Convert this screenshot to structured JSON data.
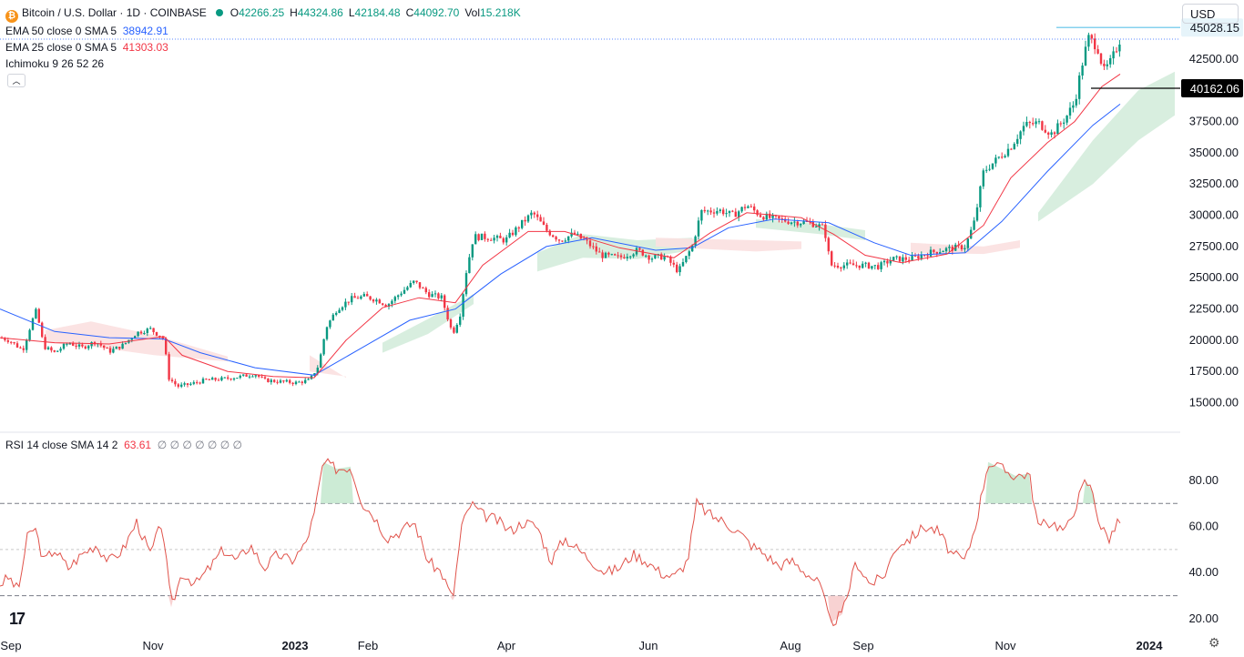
{
  "header": {
    "symbol": "Bitcoin / U.S. Dollar · 1D · COINBASE",
    "ohlc": [
      {
        "k": "O",
        "v": "42266.25"
      },
      {
        "k": "H",
        "v": "44324.86"
      },
      {
        "k": "L",
        "v": "42184.48"
      },
      {
        "k": "C",
        "v": "44092.70"
      },
      {
        "k": "Vol",
        "v": "15.218K"
      }
    ],
    "ema50_label": "EMA 50 close 0 SMA 5",
    "ema50_value": "38942.91",
    "ema25_label": "EMA 25 close 0 SMA 5",
    "ema25_value": "41303.03",
    "ichimoku_label": "Ichimoku 9 26 52 26",
    "currency": "USD"
  },
  "rsi_header": {
    "label": "RSI 14 close SMA 14 2",
    "value": "63.61",
    "extras": "∅ ∅ ∅ ∅ ∅ ∅ ∅"
  },
  "colors": {
    "up": "#089981",
    "down": "#f23645",
    "ema50": "#2962ff",
    "ema25": "#f23645",
    "rsi": "#e0524a",
    "cloud_bull": "#d4ecdc",
    "cloud_bear": "#fbe0e0",
    "high_line": "#5ec3e8",
    "low_line": "#000000"
  },
  "chart_data": [
    {
      "type": "candlestick",
      "title": "Bitcoin / U.S. Dollar · 1D · COINBASE",
      "x_ticks": [
        "Sep",
        "Nov",
        "2023",
        "Feb",
        "Apr",
        "Jun",
        "Aug",
        "Sep",
        "Nov",
        "2024"
      ],
      "y_ticks": [
        15000,
        17500,
        20000,
        22500,
        25000,
        27500,
        30000,
        32500,
        35000,
        37500,
        42500
      ],
      "ylim": [
        13000,
        46500
      ],
      "price_labels": [
        {
          "value": 45028.15,
          "text": "45028.15",
          "kind": "high"
        },
        {
          "value": 40162.06,
          "text": "40162.06",
          "kind": "low"
        }
      ],
      "path": [
        [
          0,
          20200
        ],
        [
          10,
          20000
        ],
        [
          25,
          19200
        ],
        [
          35,
          21500
        ],
        [
          40,
          22400
        ],
        [
          48,
          19500
        ],
        [
          60,
          19000
        ],
        [
          75,
          19800
        ],
        [
          90,
          19400
        ],
        [
          105,
          19900
        ],
        [
          120,
          19100
        ],
        [
          135,
          19600
        ],
        [
          150,
          20600
        ],
        [
          165,
          20900
        ],
        [
          180,
          20100
        ],
        [
          185,
          17000
        ],
        [
          195,
          16300
        ],
        [
          210,
          16500
        ],
        [
          225,
          16800
        ],
        [
          245,
          16900
        ],
        [
          265,
          17100
        ],
        [
          280,
          17300
        ],
        [
          290,
          16800
        ],
        [
          305,
          16700
        ],
        [
          325,
          16600
        ],
        [
          340,
          16800
        ],
        [
          350,
          18000
        ],
        [
          358,
          21000
        ],
        [
          370,
          22500
        ],
        [
          385,
          23300
        ],
        [
          400,
          23500
        ],
        [
          415,
          23200
        ],
        [
          425,
          22800
        ],
        [
          440,
          23800
        ],
        [
          455,
          24700
        ],
        [
          470,
          23700
        ],
        [
          485,
          23400
        ],
        [
          497,
          20500
        ],
        [
          505,
          22000
        ],
        [
          512,
          25500
        ],
        [
          520,
          28300
        ],
        [
          540,
          28200
        ],
        [
          555,
          28000
        ],
        [
          575,
          29500
        ],
        [
          585,
          30200
        ],
        [
          600,
          28800
        ],
        [
          615,
          28000
        ],
        [
          630,
          28500
        ],
        [
          645,
          27800
        ],
        [
          660,
          26800
        ],
        [
          680,
          26600
        ],
        [
          700,
          27200
        ],
        [
          715,
          26600
        ],
        [
          730,
          26700
        ],
        [
          745,
          25500
        ],
        [
          760,
          27500
        ],
        [
          770,
          30300
        ],
        [
          790,
          30400
        ],
        [
          805,
          30000
        ],
        [
          820,
          30800
        ],
        [
          835,
          30000
        ],
        [
          850,
          29700
        ],
        [
          870,
          29500
        ],
        [
          890,
          29400
        ],
        [
          905,
          29000
        ],
        [
          912,
          26000
        ],
        [
          925,
          26000
        ],
        [
          945,
          26000
        ],
        [
          965,
          25900
        ],
        [
          980,
          26500
        ],
        [
          1000,
          26500
        ],
        [
          1020,
          27000
        ],
        [
          1040,
          27300
        ],
        [
          1060,
          27500
        ],
        [
          1070,
          29500
        ],
        [
          1080,
          33500
        ],
        [
          1095,
          34500
        ],
        [
          1110,
          35500
        ],
        [
          1125,
          37200
        ],
        [
          1140,
          37400
        ],
        [
          1155,
          36500
        ],
        [
          1170,
          37800
        ],
        [
          1180,
          39000
        ],
        [
          1188,
          42000
        ],
        [
          1195,
          44200
        ],
        [
          1205,
          43500
        ],
        [
          1212,
          41500
        ],
        [
          1220,
          42300
        ],
        [
          1230,
          44100
        ]
      ],
      "ema25_path": [
        [
          0,
          20200
        ],
        [
          60,
          19800
        ],
        [
          120,
          19700
        ],
        [
          180,
          20300
        ],
        [
          200,
          18800
        ],
        [
          250,
          17500
        ],
        [
          300,
          17100
        ],
        [
          345,
          17000
        ],
        [
          380,
          20000
        ],
        [
          420,
          22600
        ],
        [
          460,
          23400
        ],
        [
          500,
          23000
        ],
        [
          530,
          26000
        ],
        [
          580,
          28700
        ],
        [
          620,
          28700
        ],
        [
          680,
          27400
        ],
        [
          740,
          26600
        ],
        [
          780,
          28600
        ],
        [
          820,
          30200
        ],
        [
          880,
          29800
        ],
        [
          915,
          28500
        ],
        [
          950,
          26800
        ],
        [
          990,
          26200
        ],
        [
          1040,
          26900
        ],
        [
          1080,
          29200
        ],
        [
          1110,
          33000
        ],
        [
          1150,
          35800
        ],
        [
          1180,
          37500
        ],
        [
          1210,
          40300
        ],
        [
          1230,
          41300
        ]
      ],
      "ema50_path": [
        [
          0,
          22500
        ],
        [
          60,
          20700
        ],
        [
          120,
          20200
        ],
        [
          180,
          20100
        ],
        [
          220,
          19000
        ],
        [
          280,
          17800
        ],
        [
          345,
          17200
        ],
        [
          400,
          19500
        ],
        [
          450,
          21600
        ],
        [
          500,
          22500
        ],
        [
          550,
          25300
        ],
        [
          600,
          27500
        ],
        [
          650,
          28200
        ],
        [
          720,
          27200
        ],
        [
          760,
          27400
        ],
        [
          800,
          29000
        ],
        [
          850,
          29700
        ],
        [
          910,
          29400
        ],
        [
          960,
          27800
        ],
        [
          1000,
          26800
        ],
        [
          1060,
          27000
        ],
        [
          1100,
          29500
        ],
        [
          1150,
          33500
        ],
        [
          1200,
          37200
        ],
        [
          1230,
          38900
        ]
      ],
      "cloud": [
        {
          "color": "bear",
          "pts": [
            [
              50,
              20800
            ],
            [
              100,
              21500
            ],
            [
              170,
              20400
            ],
            [
              250,
              18700
            ],
            [
              250,
              18300
            ],
            [
              170,
              18800
            ],
            [
              100,
              19500
            ],
            [
              50,
              19800
            ]
          ]
        },
        {
          "color": "bear",
          "pts": [
            [
              340,
              18800
            ],
            [
              380,
              17000
            ],
            [
              380,
              17100
            ],
            [
              340,
              17500
            ]
          ]
        },
        {
          "color": "bull",
          "pts": [
            [
              420,
              19800
            ],
            [
              470,
              21700
            ],
            [
              520,
              23700
            ],
            [
              520,
              22900
            ],
            [
              470,
              20500
            ],
            [
              420,
              19000
            ]
          ]
        },
        {
          "color": "bull",
          "pts": [
            [
              590,
              27000
            ],
            [
              640,
              28500
            ],
            [
              700,
              28000
            ],
            [
              760,
              28200
            ],
            [
              760,
              27200
            ],
            [
              700,
              26500
            ],
            [
              640,
              26600
            ],
            [
              590,
              25500
            ]
          ]
        },
        {
          "color": "bear",
          "pts": [
            [
              720,
              28200
            ],
            [
              830,
              28000
            ],
            [
              880,
              27900
            ],
            [
              880,
              27300
            ],
            [
              830,
              27100
            ],
            [
              720,
              27500
            ]
          ]
        },
        {
          "color": "bull",
          "pts": [
            [
              830,
              29700
            ],
            [
              900,
              29300
            ],
            [
              950,
              28800
            ],
            [
              950,
              28000
            ],
            [
              900,
              28500
            ],
            [
              830,
              29000
            ]
          ]
        },
        {
          "color": "bear",
          "pts": [
            [
              1000,
              27800
            ],
            [
              1080,
              27500
            ],
            [
              1120,
              28000
            ],
            [
              1120,
              27400
            ],
            [
              1080,
              26900
            ],
            [
              1000,
              27000
            ]
          ]
        },
        {
          "color": "bull",
          "pts": [
            [
              1140,
              30200
            ],
            [
              1200,
              36000
            ],
            [
              1250,
              40000
            ],
            [
              1290,
              41500
            ],
            [
              1290,
              38000
            ],
            [
              1250,
              36000
            ],
            [
              1200,
              32500
            ],
            [
              1140,
              29500
            ]
          ]
        }
      ]
    },
    {
      "type": "line",
      "title": "RSI 14 close SMA 14 2",
      "y_ticks": [
        20,
        40,
        60,
        80
      ],
      "ylim": [
        16,
        95
      ],
      "levels": [
        70,
        50,
        30
      ],
      "x": [
        0,
        10,
        20,
        30,
        38,
        48,
        60,
        75,
        90,
        105,
        120,
        135,
        150,
        165,
        178,
        188,
        200,
        215,
        230,
        245,
        260,
        275,
        290,
        305,
        320,
        335,
        345,
        355,
        370,
        385,
        398,
        410,
        425,
        440,
        455,
        470,
        485,
        497,
        507,
        517,
        530,
        545,
        560,
        575,
        590,
        605,
        620,
        635,
        650,
        665,
        680,
        695,
        710,
        725,
        740,
        755,
        765,
        780,
        795,
        810,
        825,
        840,
        855,
        870,
        885,
        900,
        912,
        925,
        940,
        955,
        970,
        985,
        1000,
        1015,
        1030,
        1045,
        1060,
        1072,
        1085,
        1100,
        1115,
        1130,
        1140,
        1155,
        1170,
        1180,
        1192,
        1200,
        1208,
        1218,
        1230
      ],
      "values": [
        35,
        38,
        32,
        55,
        60,
        45,
        50,
        42,
        48,
        52,
        45,
        50,
        62,
        48,
        62,
        25,
        40,
        35,
        42,
        50,
        45,
        52,
        42,
        48,
        45,
        52,
        65,
        88,
        85,
        86,
        70,
        65,
        55,
        58,
        62,
        45,
        40,
        28,
        60,
        70,
        65,
        63,
        58,
        62,
        60,
        45,
        55,
        50,
        45,
        40,
        42,
        48,
        45,
        40,
        38,
        45,
        70,
        65,
        62,
        58,
        52,
        48,
        43,
        45,
        40,
        35,
        18,
        22,
        45,
        35,
        38,
        52,
        55,
        60,
        58,
        48,
        45,
        62,
        88,
        85,
        82,
        83,
        60,
        62,
        58,
        68,
        80,
        75,
        60,
        55,
        63
      ]
    }
  ]
}
